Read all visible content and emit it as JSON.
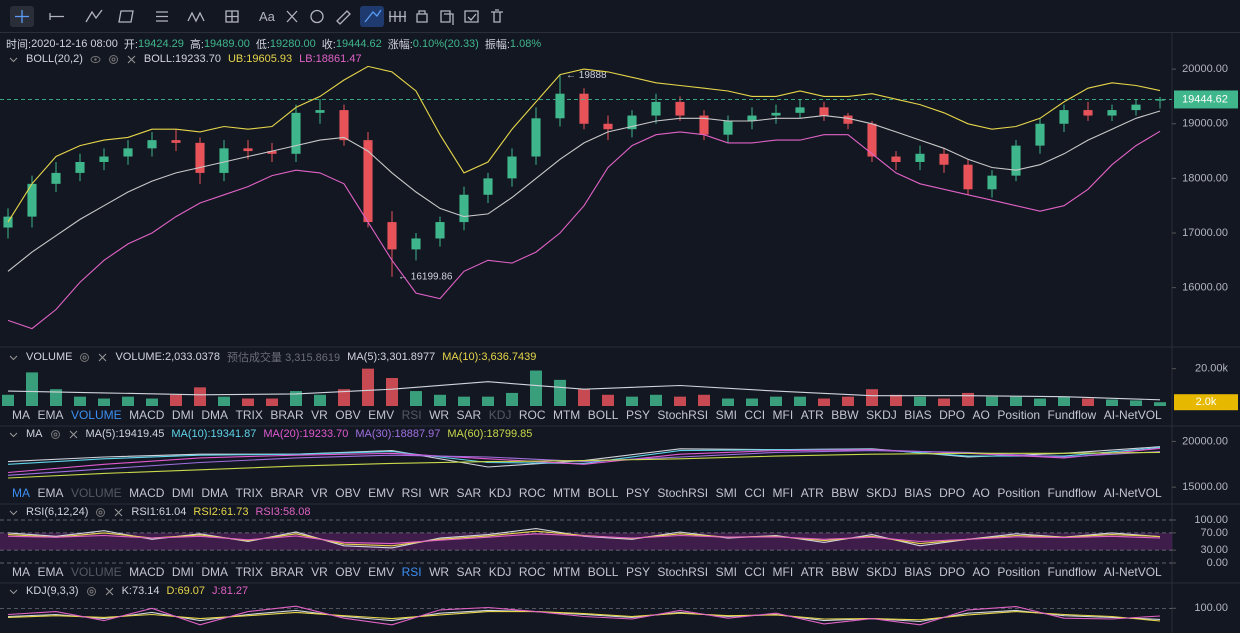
{
  "toolbar": {
    "text_tool": "Aa"
  },
  "info": [
    {
      "label": "时间:",
      "value": "2020-12-16 08:00",
      "color": "#d1d4dc"
    },
    {
      "label": "开:",
      "value": "19424.29",
      "color": "#3fb68b"
    },
    {
      "label": "高:",
      "value": "19489.00",
      "color": "#3fb68b"
    },
    {
      "label": "低:",
      "value": "19280.00",
      "color": "#3fb68b"
    },
    {
      "label": "收:",
      "value": "19444.62",
      "color": "#3fb68b"
    },
    {
      "label": "涨幅:",
      "value": "0.10%(20.33)",
      "color": "#3fb68b"
    },
    {
      "label": "振幅:",
      "value": "1.08%",
      "color": "#3fb68b"
    }
  ],
  "indicator_tabs": [
    "MA",
    "EMA",
    "VOLUME",
    "MACD",
    "DMI",
    "DMA",
    "TRIX",
    "BRAR",
    "VR",
    "OBV",
    "EMV",
    "RSI",
    "WR",
    "SAR",
    "KDJ",
    "ROC",
    "MTM",
    "BOLL",
    "PSY",
    "StochRSI",
    "SMI",
    "CCI",
    "MFI",
    "ATR",
    "BBW",
    "SKDJ",
    "BIAS",
    "DPO",
    "AO",
    "Position",
    "Fundflow",
    "AI-NetVOL"
  ],
  "tab_rows": [
    {
      "active": 2,
      "disabled": [
        11,
        14
      ]
    },
    {
      "active": 0,
      "disabled": [
        2
      ]
    },
    {
      "active": 11,
      "disabled": [
        2
      ]
    }
  ],
  "chart_data": [
    {
      "type": "candlestick",
      "title": "BOLL(20,2)",
      "legend": [
        {
          "text": "BOLL:19233.70",
          "color": "#d1d4dc"
        },
        {
          "text": "UB:19605.93",
          "color": "#e6d54a"
        },
        {
          "text": "LB:18861.47",
          "color": "#e062c5"
        }
      ],
      "up_color": "#3fb68b",
      "down_color": "#e8535a",
      "open": [
        17100,
        17300,
        17900,
        18100,
        18300,
        18400,
        18550,
        18700,
        18650,
        18100,
        18550,
        18500,
        18450,
        19200,
        19250,
        18700,
        17200,
        16700,
        16900,
        17200,
        17700,
        18000,
        18400,
        19100,
        19550,
        19000,
        18900,
        19150,
        19400,
        19150,
        18800,
        19050,
        19150,
        19200,
        19300,
        19150,
        19000,
        18400,
        18300,
        18450,
        18250,
        17800,
        18050,
        18600,
        19000,
        19250,
        19150,
        19250,
        19424.29
      ],
      "high": [
        17450,
        18050,
        18300,
        18450,
        18550,
        18700,
        18850,
        18900,
        18750,
        18700,
        18700,
        18650,
        19350,
        19450,
        19350,
        18850,
        17400,
        17000,
        17300,
        17850,
        18100,
        18550,
        19300,
        19888,
        19650,
        19150,
        19250,
        19550,
        19500,
        19250,
        19150,
        19300,
        19350,
        19450,
        19400,
        19200,
        19050,
        18500,
        18600,
        18550,
        18350,
        18150,
        18700,
        19100,
        19350,
        19400,
        19350,
        19450,
        19489
      ],
      "low": [
        16900,
        17100,
        17750,
        17950,
        18150,
        18250,
        18400,
        18500,
        17900,
        17950,
        18350,
        18300,
        18300,
        19000,
        18600,
        17100,
        16199.86,
        16500,
        16750,
        17050,
        17550,
        17850,
        18250,
        18950,
        18900,
        18700,
        18750,
        19000,
        19050,
        18700,
        18650,
        18900,
        19000,
        19100,
        19050,
        18900,
        18300,
        18150,
        18150,
        18100,
        17700,
        17650,
        17950,
        18450,
        18850,
        19050,
        19050,
        19150,
        19280
      ],
      "close": [
        17300,
        17900,
        18100,
        18300,
        18400,
        18550,
        18700,
        18650,
        18100,
        18550,
        18500,
        18450,
        19200,
        19250,
        18700,
        17200,
        16700,
        16900,
        17200,
        17700,
        18000,
        18400,
        19100,
        19550,
        19000,
        18900,
        19150,
        19400,
        19150,
        18800,
        19050,
        19150,
        19200,
        19300,
        19150,
        19000,
        18400,
        18300,
        18450,
        18250,
        17800,
        18050,
        18600,
        19000,
        19250,
        19150,
        19250,
        19350,
        19444.62
      ],
      "series": [
        {
          "color": "#e6d54a",
          "values": [
            17200,
            17900,
            18400,
            18600,
            18700,
            18750,
            18900,
            18900,
            18850,
            18950,
            18900,
            18950,
            19300,
            19500,
            19800,
            20050,
            19950,
            19600,
            18800,
            18100,
            18300,
            18900,
            19400,
            19900,
            20000,
            19950,
            19850,
            19750,
            19700,
            19650,
            19600,
            19500,
            19500,
            19600,
            19500,
            19500,
            19550,
            19450,
            19350,
            19200,
            19000,
            18900,
            18950,
            19100,
            19400,
            19650,
            19750,
            19700,
            19605.93
          ]
        },
        {
          "color": "#c9c9c9",
          "values": [
            16300,
            16650,
            16950,
            17250,
            17500,
            17750,
            17950,
            18100,
            18200,
            18300,
            18400,
            18500,
            18600,
            18700,
            18750,
            18500,
            18100,
            17750,
            17450,
            17300,
            17350,
            17650,
            18000,
            18350,
            18650,
            18850,
            18950,
            19050,
            19100,
            19100,
            19050,
            19050,
            19100,
            19100,
            19150,
            19100,
            19000,
            18850,
            18700,
            18550,
            18350,
            18200,
            18150,
            18250,
            18450,
            18700,
            18900,
            19100,
            19233.7
          ]
        },
        {
          "color": "#e062c5",
          "values": [
            15400,
            15250,
            15600,
            16100,
            16500,
            16800,
            17000,
            17300,
            17550,
            17700,
            17850,
            18050,
            18150,
            18100,
            17900,
            17200,
            16500,
            15900,
            15800,
            16300,
            16500,
            16450,
            16650,
            17000,
            17500,
            18200,
            18600,
            18800,
            18850,
            18800,
            18650,
            18650,
            18700,
            18700,
            18800,
            18800,
            18450,
            18100,
            17900,
            17800,
            17700,
            17600,
            17500,
            17400,
            17500,
            17800,
            18250,
            18600,
            18861.47
          ]
        }
      ],
      "high_label": "← 19888",
      "low_label": "← 16199.86",
      "last_price": 19444.62,
      "last_color": "#3fb68b",
      "ylim": [
        14950,
        20350
      ],
      "yticks": [
        {
          "value": 16000,
          "label": "16000.00"
        },
        {
          "value": 17000,
          "label": "17000.00"
        },
        {
          "value": 18000,
          "label": "18000.00"
        },
        {
          "value": 19000,
          "label": "19000.00"
        },
        {
          "value": 20000,
          "label": "20000.00"
        }
      ]
    },
    {
      "type": "bar",
      "title": "VOLUME",
      "legend": [
        {
          "text": "VOLUME:2,033.0378",
          "color": "#d1d4dc"
        },
        {
          "text": "预估成交量 3,315.8619",
          "color": "#6a6d78"
        },
        {
          "text": "MA(5):3,301.8977",
          "color": "#d1d4dc"
        },
        {
          "text": "MA(10):3,636.7439",
          "color": "#e6d54a"
        }
      ],
      "values": [
        6000,
        18000,
        9000,
        5000,
        4000,
        5000,
        4000,
        6000,
        10000,
        5000,
        4000,
        4000,
        8000,
        6000,
        9000,
        20000,
        15000,
        8000,
        6000,
        5000,
        5000,
        7000,
        19000,
        14000,
        9000,
        6000,
        5000,
        6000,
        5000,
        6000,
        4000,
        4000,
        5000,
        5000,
        4000,
        5000,
        9000,
        6000,
        5000,
        4000,
        7000,
        5000,
        5000,
        4000,
        5000,
        4000,
        3500,
        3000,
        2033.0378
      ],
      "series": [
        {
          "color": "#d1d4dc",
          "values": [
            8000,
            7000,
            6000,
            6500,
            9000,
            13000,
            9000,
            11000,
            8000,
            5500,
            5500,
            5000,
            3301.8977
          ]
        }
      ],
      "last_value": {
        "value": 2033.0378,
        "label": "2.0k"
      },
      "last_color": "#e6b800",
      "ylim": [
        0,
        30000
      ],
      "yticks": [
        {
          "value": 20000,
          "label": "20.00k"
        }
      ]
    },
    {
      "type": "line",
      "title": "MA",
      "legend": [
        {
          "text": "MA(5):19419.45",
          "color": "#d1d4dc"
        },
        {
          "text": "MA(10):19341.87",
          "color": "#5fd3e8"
        },
        {
          "text": "MA(20):19233.70",
          "color": "#e05ad0"
        },
        {
          "text": "MA(30):18887.97",
          "color": "#a070e0"
        },
        {
          "text": "MA(60):18799.85",
          "color": "#c8d84a"
        }
      ],
      "series": [
        {
          "color": "#d1d4dc",
          "values": [
            17800,
            18300,
            18600,
            18600,
            19000,
            17200,
            17900,
            19200,
            19100,
            19200,
            18300,
            18700,
            19419.45
          ]
        },
        {
          "color": "#5fd3e8",
          "values": [
            17500,
            18100,
            18500,
            18600,
            18900,
            17700,
            17600,
            19000,
            19100,
            19150,
            18400,
            18400,
            19341.87
          ]
        },
        {
          "color": "#e05ad0",
          "values": [
            16600,
            17500,
            18200,
            18500,
            18700,
            18100,
            17500,
            18600,
            19000,
            19100,
            18700,
            18200,
            19233.7
          ]
        },
        {
          "color": "#a070e0",
          "values": [
            16300,
            17000,
            17700,
            18200,
            18500,
            18300,
            17800,
            18300,
            18800,
            19000,
            18800,
            18300,
            18887.97
          ]
        },
        {
          "color": "#c8d84a",
          "values": [
            16000,
            16500,
            16900,
            17300,
            17600,
            17800,
            17900,
            18100,
            18400,
            18600,
            18700,
            18700,
            18799.85
          ]
        }
      ],
      "ylim": [
        14690,
        21250
      ],
      "yticks": [
        {
          "value": 15000,
          "label": "15000.00"
        },
        {
          "value": 20000,
          "label": "20000.00"
        }
      ]
    },
    {
      "type": "line",
      "title": "RSI(6,12,24)",
      "legend": [
        {
          "text": "RSI1:61.04",
          "color": "#d1d4dc"
        },
        {
          "text": "RSI2:61.73",
          "color": "#e6d54a"
        },
        {
          "text": "RSI3:58.08",
          "color": "#e062c5"
        }
      ],
      "band": {
        "from": 30,
        "to": 70,
        "color": "#4a1f55"
      },
      "grid": "dashed",
      "series": [
        {
          "color": "#d1d4dc",
          "values": [
            70,
            62,
            75,
            55,
            68,
            50,
            72,
            40,
            35,
            58,
            66,
            80,
            62,
            55,
            72,
            58,
            64,
            48,
            66,
            40,
            55,
            68,
            60,
            70,
            61.04
          ]
        },
        {
          "color": "#e6d54a",
          "values": [
            66,
            60,
            70,
            58,
            65,
            52,
            68,
            44,
            40,
            55,
            63,
            74,
            64,
            57,
            68,
            60,
            62,
            52,
            62,
            45,
            55,
            64,
            60,
            66,
            61.73
          ]
        },
        {
          "color": "#e062c5",
          "values": [
            62,
            60,
            64,
            58,
            62,
            54,
            63,
            48,
            45,
            53,
            60,
            68,
            63,
            58,
            64,
            60,
            61,
            55,
            60,
            50,
            55,
            61,
            59,
            62,
            58.08
          ]
        }
      ],
      "ylim": [
        -7,
        118.6
      ],
      "yticks": [
        {
          "value": 0,
          "label": "0.00"
        },
        {
          "value": 30,
          "label": "30.00"
        },
        {
          "value": 70,
          "label": "70.00"
        },
        {
          "value": 100,
          "label": "100.00"
        }
      ]
    },
    {
      "type": "line",
      "title": "KDJ(9,3,3)",
      "legend": [
        {
          "text": "K:73.14",
          "color": "#d1d4dc"
        },
        {
          "text": "D:69.07",
          "color": "#e6d54a"
        },
        {
          "text": "J:81.27",
          "color": "#e062c5"
        }
      ],
      "grid": "dashed",
      "series": [
        {
          "color": "#d1d4dc",
          "values": [
            80,
            85,
            75,
            90,
            70,
            85,
            95,
            80,
            70,
            88,
            95,
            92,
            85,
            78,
            90,
            80,
            85,
            70,
            75,
            68,
            88,
            95,
            82,
            78,
            73.14
          ]
        },
        {
          "color": "#e6d54a",
          "values": [
            78,
            82,
            78,
            85,
            75,
            82,
            90,
            82,
            75,
            84,
            92,
            92,
            87,
            80,
            88,
            82,
            84,
            74,
            75,
            72,
            84,
            92,
            85,
            80,
            69.07
          ]
        },
        {
          "color": "#e062c5",
          "values": [
            85,
            92,
            70,
            100,
            60,
            92,
            105,
            76,
            60,
            96,
            102,
            92,
            80,
            74,
            95,
            76,
            88,
            62,
            75,
            60,
            96,
            104,
            76,
            74,
            81.27
          ]
        }
      ],
      "ylim": [
        40,
        125
      ],
      "yticks": [
        {
          "value": 100,
          "label": "100.00"
        }
      ]
    }
  ]
}
